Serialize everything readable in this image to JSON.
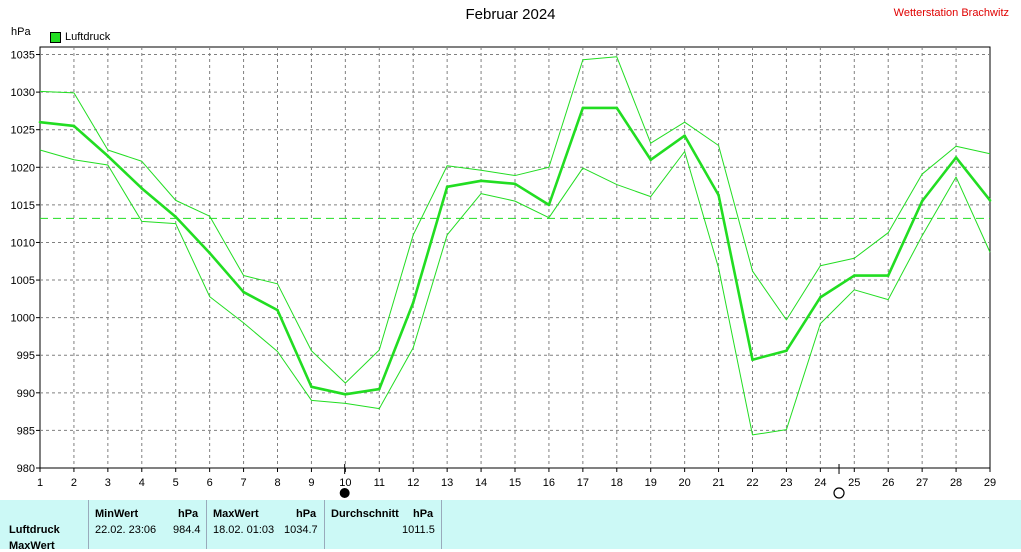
{
  "header": {
    "title": "Februar 2024",
    "station": "Wetterstation Brachwitz",
    "unit": "hPa",
    "legend_label": "Luftdruck"
  },
  "colors": {
    "series": "#22dd22",
    "grid": "#808080",
    "station": "#e00000",
    "panel": "#ccf9f6"
  },
  "chart_data": {
    "type": "line",
    "title": "Februar 2024",
    "ylabel": "hPa",
    "ylim": [
      980,
      1036
    ],
    "xlim": [
      1,
      29
    ],
    "yticks": [
      980,
      985,
      990,
      995,
      1000,
      1005,
      1010,
      1015,
      1020,
      1025,
      1030,
      1035
    ],
    "xticks": [
      1,
      2,
      3,
      4,
      5,
      6,
      7,
      8,
      9,
      10,
      11,
      12,
      13,
      14,
      15,
      16,
      17,
      18,
      19,
      20,
      21,
      22,
      23,
      24,
      25,
      26,
      27,
      28,
      29
    ],
    "grid": true,
    "legend": "top-left",
    "x": [
      1,
      2,
      3,
      4,
      5,
      6,
      7,
      8,
      9,
      10,
      11,
      12,
      13,
      14,
      15,
      16,
      17,
      18,
      19,
      20,
      21,
      22,
      23,
      24,
      25,
      26,
      27,
      28,
      29
    ],
    "series": [
      {
        "name": "Luftdruck",
        "values": [
          1026.0,
          1025.5,
          1021.5,
          1017.2,
          1013.4,
          1008.6,
          1003.4,
          1001.0,
          990.8,
          989.8,
          990.5,
          1002.0,
          1017.4,
          1018.2,
          1017.8,
          1015.0,
          1027.9,
          1027.9,
          1021.0,
          1024.2,
          1016.3,
          994.4,
          995.6,
          1002.7,
          1005.6,
          1005.6,
          1015.5,
          1021.3,
          1015.6
        ]
      },
      {
        "name": "",
        "role": "max",
        "values": [
          1030.1,
          1029.9,
          1022.3,
          1020.8,
          1015.6,
          1013.5,
          1005.6,
          1004.5,
          995.6,
          991.3,
          995.7,
          1011.0,
          1020.2,
          1019.6,
          1018.9,
          1020.0,
          1034.3,
          1034.7,
          1023.2,
          1026.0,
          1022.9,
          1006.2,
          999.7,
          1006.9,
          1007.9,
          1011.3,
          1019.1,
          1022.8,
          1021.8
        ]
      },
      {
        "name": "",
        "role": "min",
        "values": [
          1022.3,
          1021.0,
          1020.3,
          1012.8,
          1012.5,
          1002.8,
          999.3,
          995.5,
          989.0,
          988.6,
          987.9,
          996.0,
          1011.0,
          1016.5,
          1015.5,
          1013.3,
          1019.9,
          1017.7,
          1016.1,
          1022.1,
          1006.6,
          984.4,
          985.1,
          999.2,
          1003.7,
          1002.4,
          1010.9,
          1018.7,
          1008.7
        ]
      }
    ],
    "average_line": 1013.2,
    "moon_markers": [
      {
        "x": 9.98,
        "phase": "new"
      },
      {
        "x": 24.55,
        "phase": "full"
      }
    ]
  },
  "stats": {
    "row_label": "Luftdruck",
    "row_label2": "MaxWert",
    "min_header": "MinWert",
    "min_unit": "hPa",
    "min_time": "22.02.  23:06",
    "min_value": "984.4",
    "max_header": "MaxWert",
    "max_unit": "hPa",
    "max_time": "18.02.  01:03",
    "max_value": "1034.7",
    "avg_header": "Durchschnitt",
    "avg_unit": "hPa",
    "avg_value": "1011.5"
  }
}
